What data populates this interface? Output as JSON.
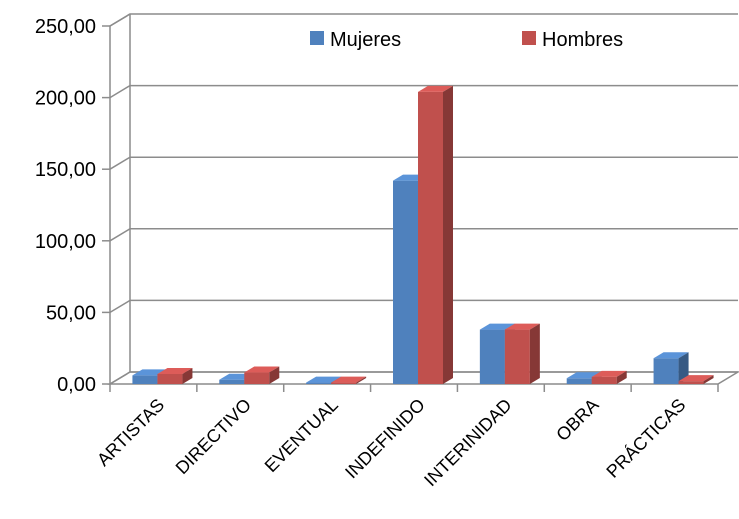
{
  "chart_data": {
    "type": "bar",
    "style": "3d-clustered-column",
    "title": "",
    "xlabel": "",
    "ylabel": "",
    "categories": [
      "ARTISTAS",
      "DIRECTIVO",
      "EVENTUAL",
      "INDEFINIDO",
      "INTERINIDAD",
      "OBRA",
      "PRÁCTICAS"
    ],
    "series": [
      {
        "name": "Mujeres",
        "color": "#4F81BD",
        "values": [
          6,
          3,
          1,
          142,
          38,
          4,
          18
        ]
      },
      {
        "name": "Hombres",
        "color": "#C0504D",
        "values": [
          7,
          8,
          1,
          204,
          38,
          5,
          2
        ]
      }
    ],
    "ylim": [
      0,
      250
    ],
    "yticks": [
      "0,00",
      "50,00",
      "100,00",
      "150,00",
      "200,00",
      "250,00"
    ],
    "grid": true,
    "legend_position": "top"
  }
}
